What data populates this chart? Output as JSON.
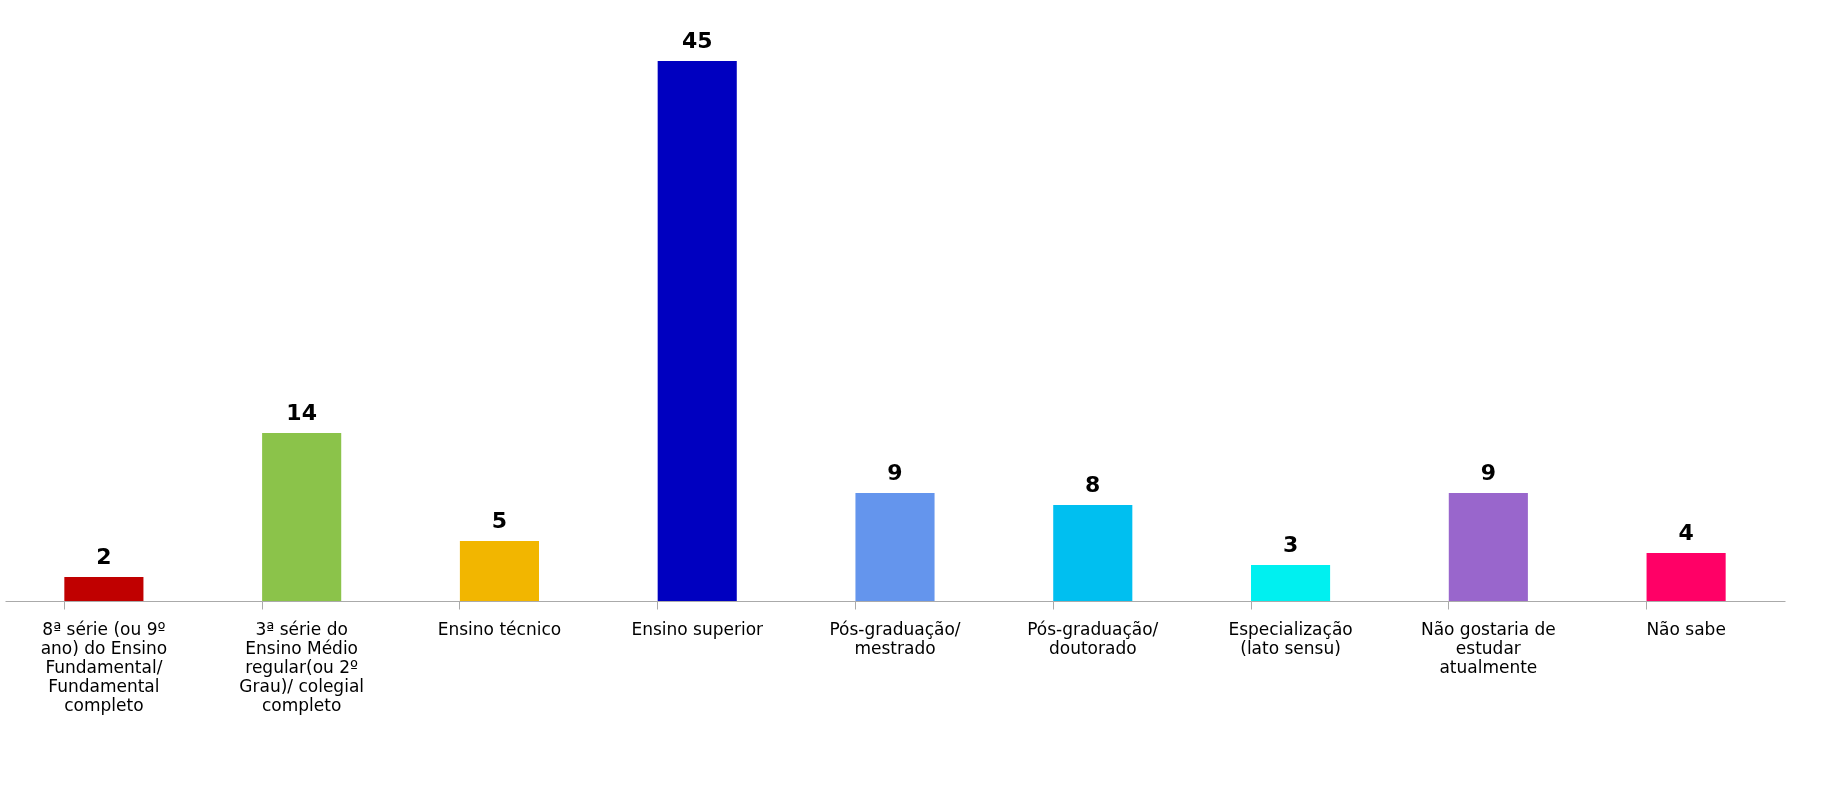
{
  "chart_data": {
    "type": "bar",
    "categories": [
      "8ª série (ou 9º ano) do Ensino Fundamental/ Fundamental completo",
      "3ª série do Ensino Médio regular(ou 2º Grau)/ colegial completo",
      "Ensino técnico",
      "Ensino superior",
      "Pós-graduação/ mestrado",
      "Pós-graduação/ doutorado",
      "Especialização (lato sensu)",
      "Não gostaria de estudar atualmente",
      "Não sabe"
    ],
    "values": [
      2,
      14,
      5,
      45,
      9,
      8,
      3,
      9,
      4
    ],
    "colors": [
      "#c00000",
      "#8bc34a",
      "#f2b600",
      "#0000c0",
      "#6495ed",
      "#00bff0",
      "#00f0f0",
      "#9966cc",
      "#ff0066"
    ],
    "data_labels": true
  }
}
